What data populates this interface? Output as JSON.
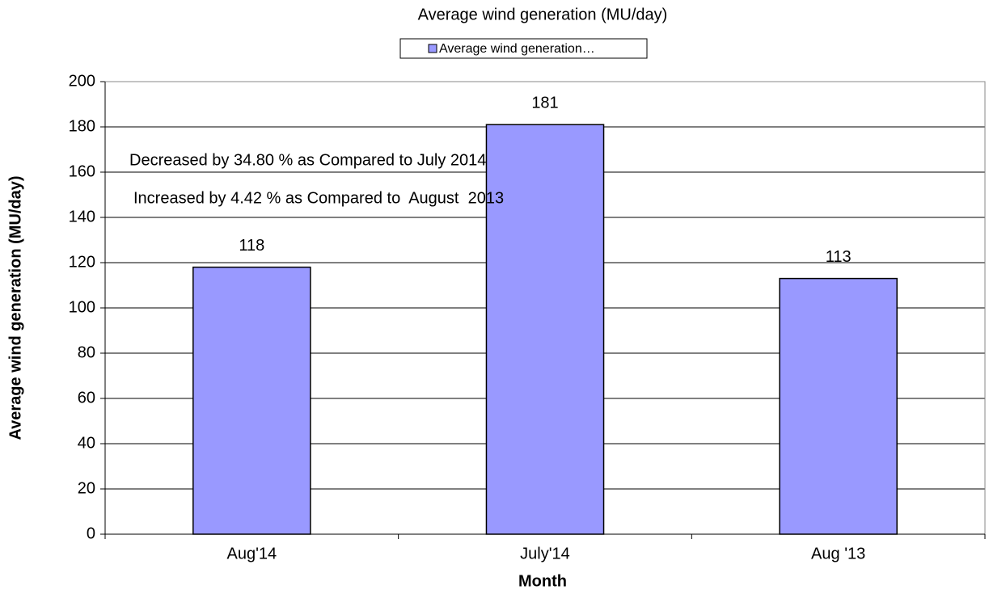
{
  "chart_data": {
    "type": "bar",
    "title": "Average wind generation (MU/day)",
    "x_label": "Month",
    "y_label": "Average wind generation (MU/day)",
    "categories": [
      "Aug'14",
      "July'14",
      "Aug '13"
    ],
    "series": [
      {
        "name": "Average wind generation…",
        "color": "#9999ff",
        "values": [
          118,
          181,
          113
        ]
      }
    ],
    "annotations": [
      "Decreased by 34.80 % as Compared to July 2014",
      "Increased by 4.42 % as Compared to  August  2013"
    ],
    "ylim": [
      0,
      200
    ],
    "yticks": [
      0,
      20,
      40,
      60,
      80,
      100,
      120,
      140,
      160,
      180,
      200
    ],
    "grid": true,
    "legend": "top"
  }
}
